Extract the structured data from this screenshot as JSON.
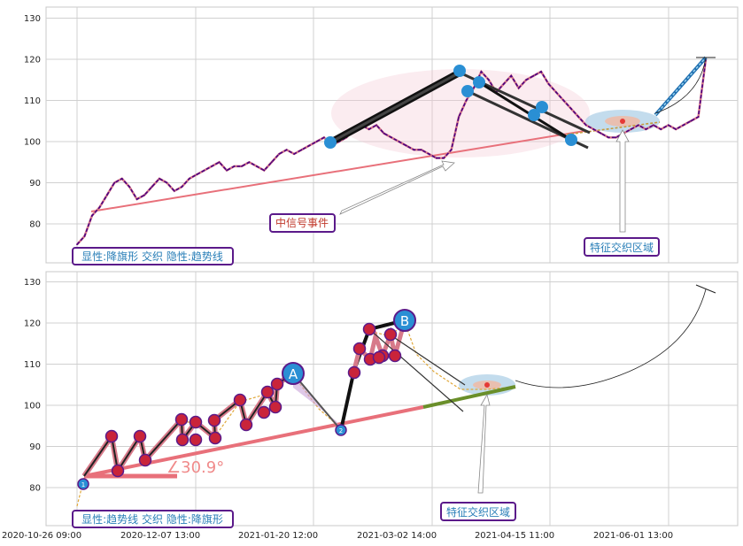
{
  "chart_data": [
    {
      "type": "line",
      "panel": "top",
      "ylim": [
        70,
        133
      ],
      "yticks": [
        80,
        90,
        100,
        110,
        120,
        130
      ],
      "grid": true,
      "series": [
        {
          "values": [
            75,
            77,
            82,
            84,
            87,
            90,
            91,
            89,
            86,
            87,
            89,
            91,
            90,
            88,
            89,
            91,
            92,
            93,
            94,
            95,
            93,
            94,
            94,
            95,
            94,
            93,
            95,
            97,
            98,
            97,
            98,
            99,
            100,
            101,
            99,
            100,
            101,
            103,
            104,
            103,
            104,
            102,
            101,
            100,
            99,
            98,
            98,
            97,
            96,
            96,
            98,
            106,
            110,
            113,
            117,
            115,
            112,
            114,
            116,
            113,
            115,
            116,
            117,
            114,
            112,
            110,
            108,
            106,
            104,
            103,
            102,
            101,
            101,
            102,
            103,
            104,
            103,
            104,
            103,
            104,
            103,
            104,
            105,
            106,
            120
          ]
        }
      ],
      "annotations": [
        {
          "text": "中信号事件",
          "color": "#c0392b"
        },
        {
          "text": "特征交织区域",
          "color": "#2a7fb8"
        },
        {
          "text": "显性:降旗形 交织 隐性:趋势线",
          "color": "#2a7fb8"
        }
      ]
    },
    {
      "type": "line",
      "panel": "bottom",
      "ylim": [
        75,
        133
      ],
      "yticks": [
        80,
        90,
        100,
        110,
        120,
        130
      ],
      "grid": true,
      "angle_label": "∠30.9°",
      "point_labels": [
        "A",
        "B",
        "1",
        "2"
      ],
      "annotations": [
        {
          "text": "特征交织区域",
          "color": "#2a7fb8"
        },
        {
          "text": "显性:趋势线 交织 隐性:降旗形",
          "color": "#2a7fb8"
        }
      ]
    }
  ],
  "x_tick_labels": [
    "2020-10-26 09:00",
    "2020-12-07 13:00",
    "2021-01-20 12:00",
    "2021-03-02 14:00",
    "2021-04-15 11:00",
    "2021-06-01 13:00"
  ],
  "colors": {
    "price": "#4b0082",
    "trend": "#e8707a",
    "marker": "#2a8fd4",
    "box_border": "#5b1a8a",
    "grid": "#d0d0d0"
  }
}
